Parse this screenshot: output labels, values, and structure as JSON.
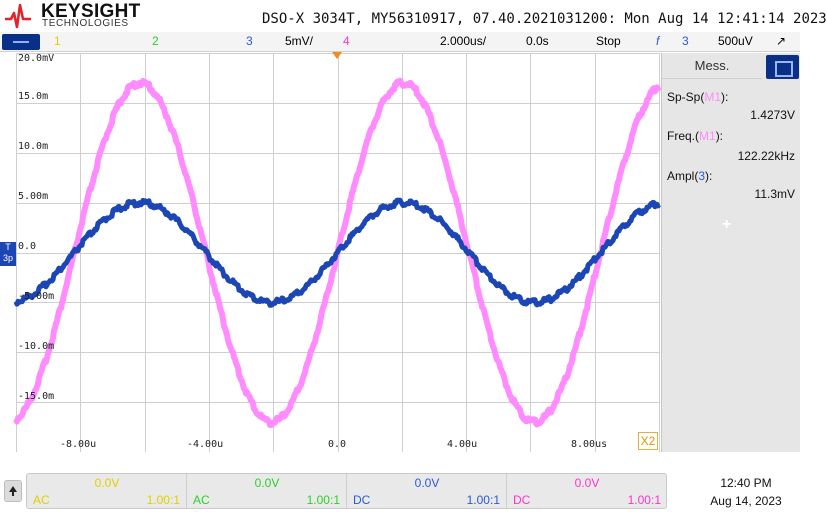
{
  "header": {
    "brand": "KEYSIGHT",
    "brand_sub": "TECHNOLOGIES",
    "title": "DSO-X 3034T, MY56310917, 07.40.2021031200: Mon Aug 14 12:41:14 2023"
  },
  "channel_bar": {
    "ch1": "1",
    "ch2": "2",
    "ch3": "3",
    "ch3_scale": "5mV/",
    "ch4": "4",
    "timebase": "2.000us/",
    "delay": "0.0s",
    "run_state": "Stop",
    "trigger_icon": "f",
    "trigger_source": "3",
    "trigger_level": "500uV",
    "trigger_mode_icon": "↗"
  },
  "plot": {
    "y_tick_labels": [
      "20.0mV",
      "15.0m",
      "10.0m",
      "5.00m",
      "0.0",
      "-5.00m",
      "-10.0m",
      "-15.0m"
    ],
    "x_tick_labels": [
      "-8.00u",
      "-4.00u",
      "0.0",
      "4.00u",
      "8.00us"
    ],
    "ch3_marker": "T\n3p",
    "x2_label": "X2",
    "colors": {
      "ch1": "#e0d000",
      "ch2": "#2ad02a",
      "ch3": "#1c46b4",
      "ch4": "#ff8cff",
      "grid": "#cfcfcf",
      "trigger": "#f28a1d"
    },
    "traces": {
      "math_pink": {
        "amplitude_mV": 17,
        "frequency_kHz": 122.22,
        "phase_deg": 0
      },
      "ch3_blue": {
        "amplitude_mV": 5,
        "frequency_kHz": 122.22,
        "phase_deg": 0
      }
    }
  },
  "measurements": {
    "tab_label": "Mess.",
    "items": [
      {
        "name": "Sp-Sp(",
        "src": "M1",
        "close": "):",
        "value": "1.4273V"
      },
      {
        "name": "Freq.(",
        "src": "M1",
        "close": "):",
        "value": "122.22kHz"
      },
      {
        "name": "Ampl(",
        "src": "3",
        "close": "):",
        "value": "11.3mV"
      }
    ],
    "add_label": "+"
  },
  "bottom": {
    "channels": [
      {
        "offset": "0.0V",
        "coupling": "AC",
        "ratio": "1.00:1",
        "color": "#e0d000"
      },
      {
        "offset": "0.0V",
        "coupling": "AC",
        "ratio": "1.00:1",
        "color": "#2ad02a"
      },
      {
        "offset": "0.0V",
        "coupling": "DC",
        "ratio": "1.00:1",
        "color": "#2a5ad6"
      },
      {
        "offset": "0.0V",
        "coupling": "DC",
        "ratio": "1.00:1",
        "color": "#ff33cc"
      }
    ],
    "time": "12:40 PM",
    "date": "Aug 14, 2023"
  }
}
